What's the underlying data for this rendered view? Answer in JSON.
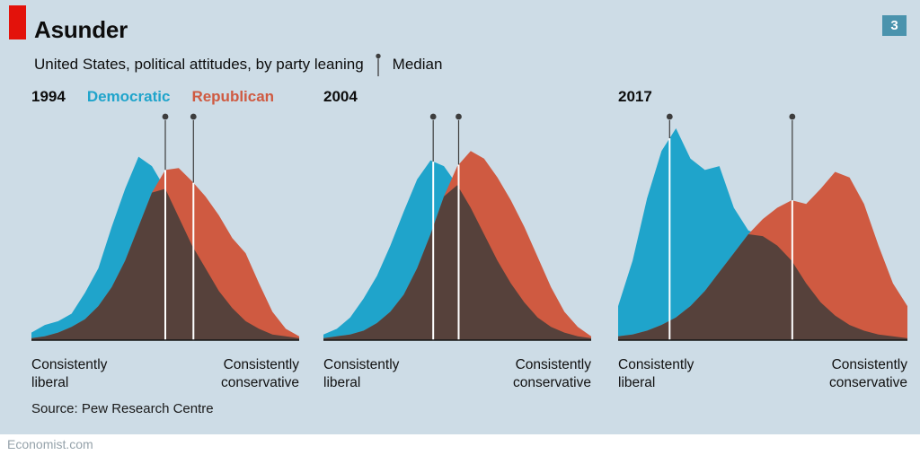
{
  "header": {
    "title": "Asunder",
    "subtitle": "United States, political attitudes, by party leaning",
    "median_label": "Median",
    "badge": "3"
  },
  "legend": {
    "democratic": "Democratic",
    "republican": "Republican"
  },
  "axis": {
    "left": [
      "Consistently",
      "liberal"
    ],
    "right": [
      "Consistently",
      "conservative"
    ]
  },
  "footer": {
    "source": "Source: Pew Research Centre",
    "site": "Economist.com"
  },
  "colors": {
    "background": "#cddce6",
    "democratic": "#1fa4cb",
    "republican": "#cf5a41",
    "overlap": "#56413b",
    "accent_red": "#e3120b",
    "badge_blue": "#4a93ad",
    "median_dark": "#3d3d3d",
    "median_white": "#ffffff"
  },
  "chart_data": {
    "type": "area",
    "title": "Asunder",
    "subtitle": "United States, political attitudes, by party leaning",
    "x_axis": {
      "left_label": "Consistently liberal",
      "right_label": "Consistently conservative"
    },
    "ylabel": "",
    "ymax": 112,
    "legend_position": "top-left of first panel",
    "panels": [
      {
        "year": "1994",
        "democratic": [
          4,
          8,
          10,
          14,
          25,
          38,
          60,
          80,
          97,
          92,
          80,
          65,
          50,
          38,
          26,
          17,
          10,
          6,
          3,
          2,
          1
        ],
        "republican": [
          1,
          2,
          4,
          7,
          11,
          18,
          28,
          42,
          60,
          78,
          90,
          91,
          84,
          76,
          66,
          54,
          46,
          30,
          15,
          6,
          2
        ],
        "democratic_median": 0.5,
        "republican_median": 0.605
      },
      {
        "year": "2004",
        "democratic": [
          3,
          6,
          12,
          22,
          34,
          50,
          68,
          85,
          95,
          92,
          82,
          70,
          56,
          42,
          30,
          20,
          12,
          7,
          4,
          2,
          1
        ],
        "republican": [
          1,
          2,
          3,
          5,
          9,
          15,
          24,
          38,
          56,
          76,
          92,
          100,
          96,
          86,
          74,
          60,
          44,
          28,
          15,
          7,
          2
        ],
        "democratic_median": 0.41,
        "republican_median": 0.505
      },
      {
        "year": "2017",
        "democratic": [
          18,
          42,
          75,
          100,
          112,
          96,
          90,
          92,
          70,
          58,
          55,
          50,
          42,
          30,
          20,
          13,
          8,
          5,
          3,
          2,
          1
        ],
        "republican": [
          2,
          3,
          5,
          8,
          12,
          18,
          26,
          36,
          46,
          56,
          64,
          70,
          74,
          72,
          80,
          89,
          86,
          72,
          50,
          30,
          18
        ],
        "democratic_median": 0.178,
        "republican_median": 0.602
      }
    ]
  }
}
